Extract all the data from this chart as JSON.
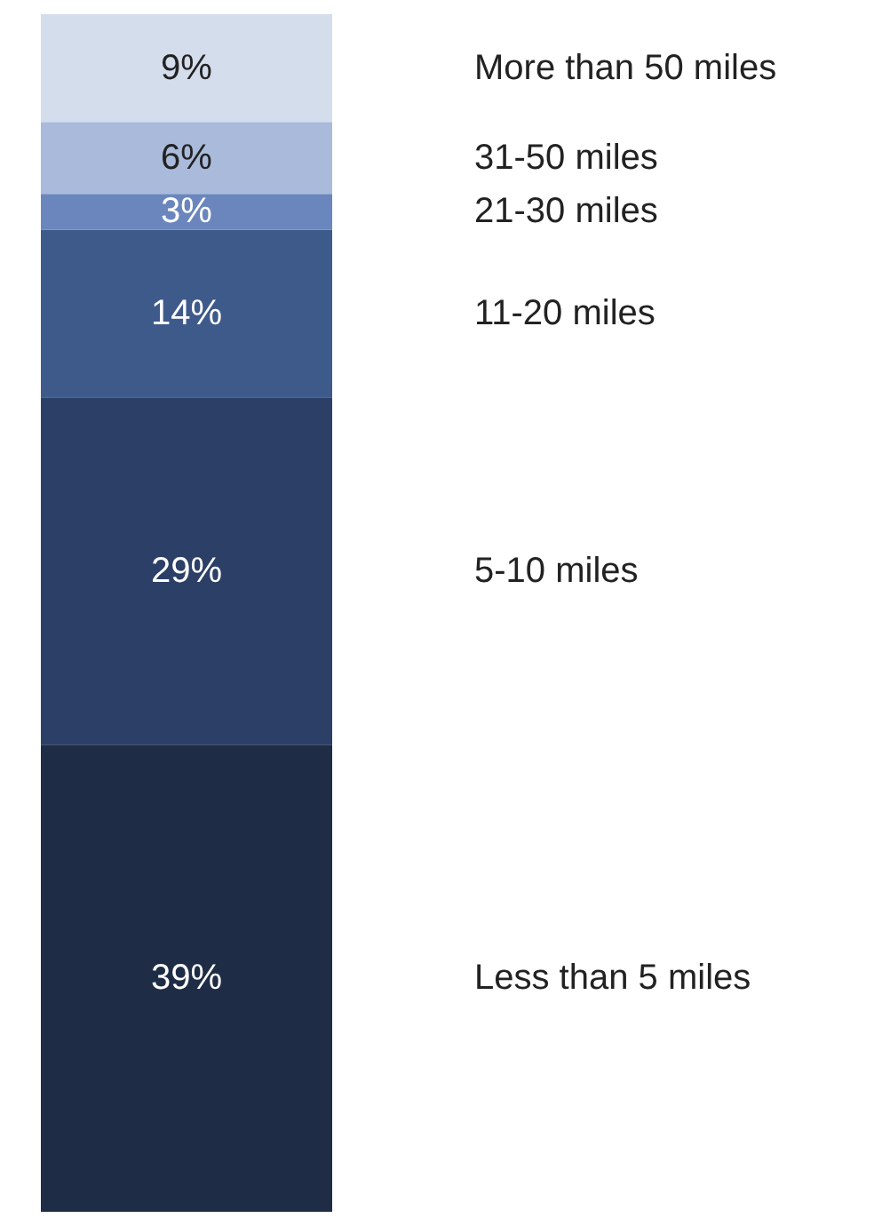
{
  "chart_data": {
    "type": "bar",
    "stacked": true,
    "categories": [
      null
    ],
    "tick_labels": false,
    "grid": false,
    "legend": false,
    "series": [
      {
        "name": "Less than 5 miles",
        "color": "#1f2c45",
        "values": [
          39
        ],
        "value_labels": [
          "39%"
        ]
      },
      {
        "name": "5-10 miles",
        "color": "#2c3f66",
        "values": [
          29
        ],
        "value_labels": [
          "29%"
        ]
      },
      {
        "name": "11-20 miles",
        "color": "#3e5a8b",
        "values": [
          14
        ],
        "value_labels": [
          "14%"
        ]
      },
      {
        "name": "21-30 miles",
        "color": "#6a86bd",
        "values": [
          3
        ],
        "value_labels": [
          "3%"
        ]
      },
      {
        "name": "31-50 miles",
        "color": "#a9badb",
        "values": [
          6
        ],
        "value_labels": [
          "6%"
        ]
      },
      {
        "name": "More than 50 miles",
        "color": "#d4ddec",
        "values": [
          9
        ],
        "value_labels": [
          "9%"
        ]
      }
    ]
  }
}
